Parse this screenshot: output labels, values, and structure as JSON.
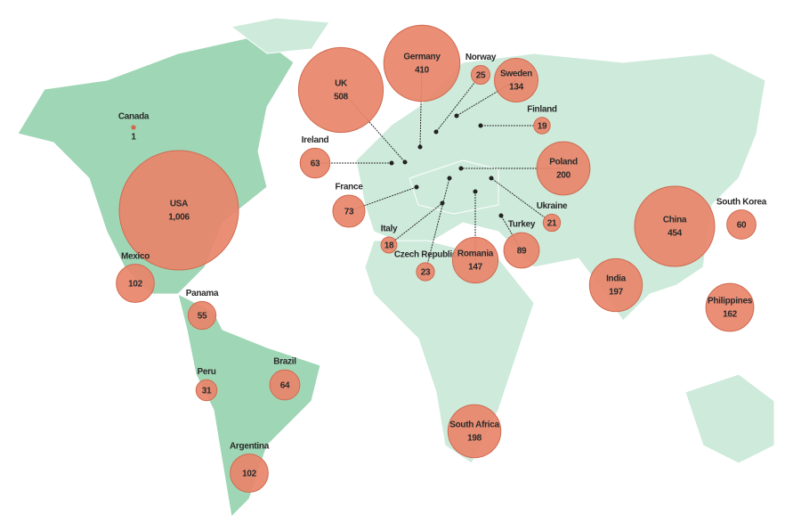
{
  "map": {
    "bubbles": [
      {
        "name": "Canada",
        "value": 1
      },
      {
        "name": "USA",
        "value": 1006,
        "value_label": "1,006"
      },
      {
        "name": "Mexico",
        "value": 102
      },
      {
        "name": "Panama",
        "value": 55
      },
      {
        "name": "Peru",
        "value": 31
      },
      {
        "name": "Brazil",
        "value": 64
      },
      {
        "name": "Argentina",
        "value": 102
      },
      {
        "name": "UK",
        "value": 508
      },
      {
        "name": "Germany",
        "value": 410
      },
      {
        "name": "Norway",
        "value": 25
      },
      {
        "name": "Sweden",
        "value": 134
      },
      {
        "name": "Finland",
        "value": 19
      },
      {
        "name": "Ireland",
        "value": 63
      },
      {
        "name": "France",
        "value": 73
      },
      {
        "name": "Italy",
        "value": 18
      },
      {
        "name": "Czech Republic",
        "value": 23
      },
      {
        "name": "Romania",
        "value": 147
      },
      {
        "name": "Turkey",
        "value": 89
      },
      {
        "name": "Ukraine",
        "value": 21
      },
      {
        "name": "Poland",
        "value": 200
      },
      {
        "name": "China",
        "value": 454
      },
      {
        "name": "South Korea",
        "value": 60
      },
      {
        "name": "India",
        "value": 197
      },
      {
        "name": "Philippines",
        "value": 162
      },
      {
        "name": "South Africa",
        "value": 198
      }
    ]
  }
}
